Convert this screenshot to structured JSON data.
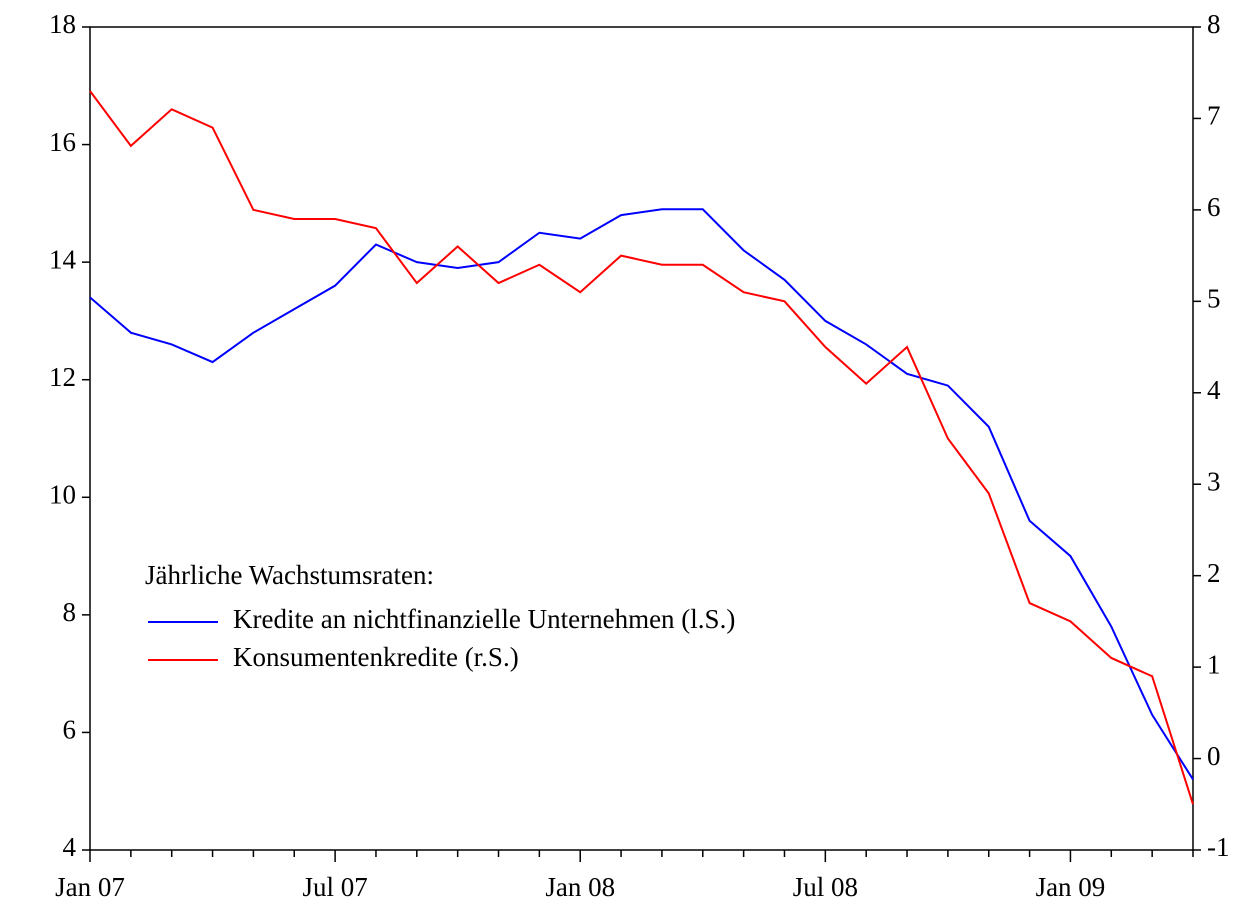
{
  "chart_data": {
    "type": "line",
    "legend_title": "Jährliche Wachstumsraten:",
    "categories": [
      "Jan 07",
      null,
      null,
      null,
      null,
      null,
      "Jul 07",
      null,
      null,
      null,
      null,
      null,
      "Jan 08",
      null,
      null,
      null,
      null,
      null,
      "Jul 08",
      null,
      null,
      null,
      null,
      null,
      "Jan 09",
      null,
      null,
      null
    ],
    "series": [
      {
        "name": "Kredite an nichtfinanzielle Unternehmen (l.S.)",
        "color": "#0000ff",
        "axis": "y",
        "values": [
          13.4,
          12.8,
          12.6,
          12.3,
          12.8,
          13.2,
          13.6,
          14.3,
          14.0,
          13.9,
          14.0,
          14.5,
          14.4,
          14.8,
          14.9,
          14.9,
          14.2,
          13.7,
          13.0,
          12.6,
          12.1,
          11.9,
          11.2,
          9.6,
          9.0,
          7.8,
          6.3,
          5.2
        ]
      },
      {
        "name": "Konsumentenkredite (r.S.)",
        "color": "#ff0000",
        "axis": "y2",
        "values": [
          7.3,
          6.7,
          7.1,
          6.9,
          6.0,
          5.9,
          5.9,
          5.8,
          5.2,
          5.6,
          5.2,
          5.4,
          5.1,
          5.5,
          5.4,
          5.4,
          5.1,
          5.0,
          4.5,
          4.1,
          4.5,
          3.5,
          2.9,
          1.7,
          1.5,
          1.1,
          0.9,
          -0.5
        ]
      }
    ],
    "ylim": [
      4,
      18
    ],
    "yticks": [
      4,
      6,
      8,
      10,
      12,
      14,
      16,
      18
    ],
    "y2lim": [
      -1,
      8
    ],
    "y2ticks": [
      -1,
      0,
      1,
      2,
      3,
      4,
      5,
      6,
      7,
      8
    ],
    "grid": false
  }
}
